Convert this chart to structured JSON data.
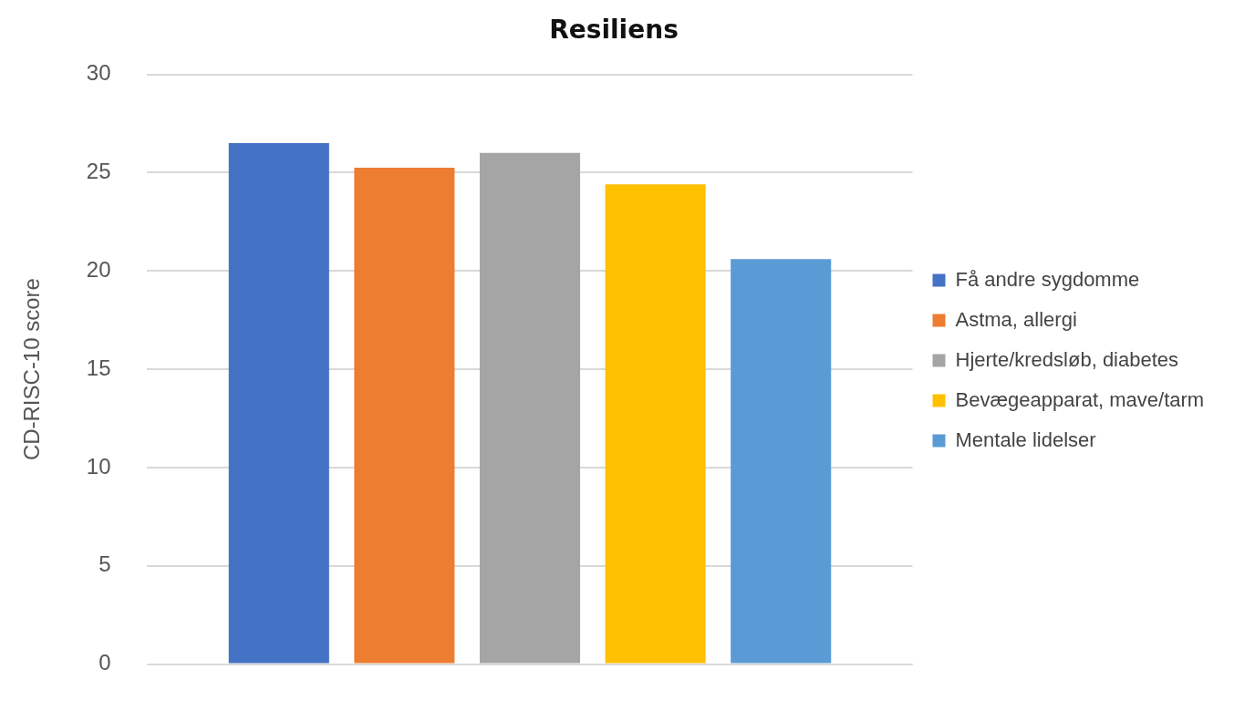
{
  "chart_data": {
    "type": "bar",
    "title": "Resiliens",
    "ylabel": "CD-RISC-10 score",
    "categories": [
      null
    ],
    "series": [
      {
        "name": "Få andre sygdomme",
        "color": "#4472c4",
        "values": [
          26.5
        ]
      },
      {
        "name": "Astma, allergi",
        "color": "#ed7d31",
        "values": [
          25.25
        ]
      },
      {
        "name": "Hjerte/kredsløb, diabetes",
        "color": "#a5a5a5",
        "values": [
          26.0
        ]
      },
      {
        "name": "Bevægeapparat, mave/tarm",
        "color": "#ffc000",
        "values": [
          24.4
        ]
      },
      {
        "name": "Mentale lidelser",
        "color": "#5b9bd5",
        "values": [
          20.6
        ]
      }
    ],
    "ylim": [
      0,
      30
    ],
    "yticks": [
      0,
      5,
      10,
      15,
      20,
      25,
      30
    ],
    "grid": "y",
    "legend": "right"
  }
}
